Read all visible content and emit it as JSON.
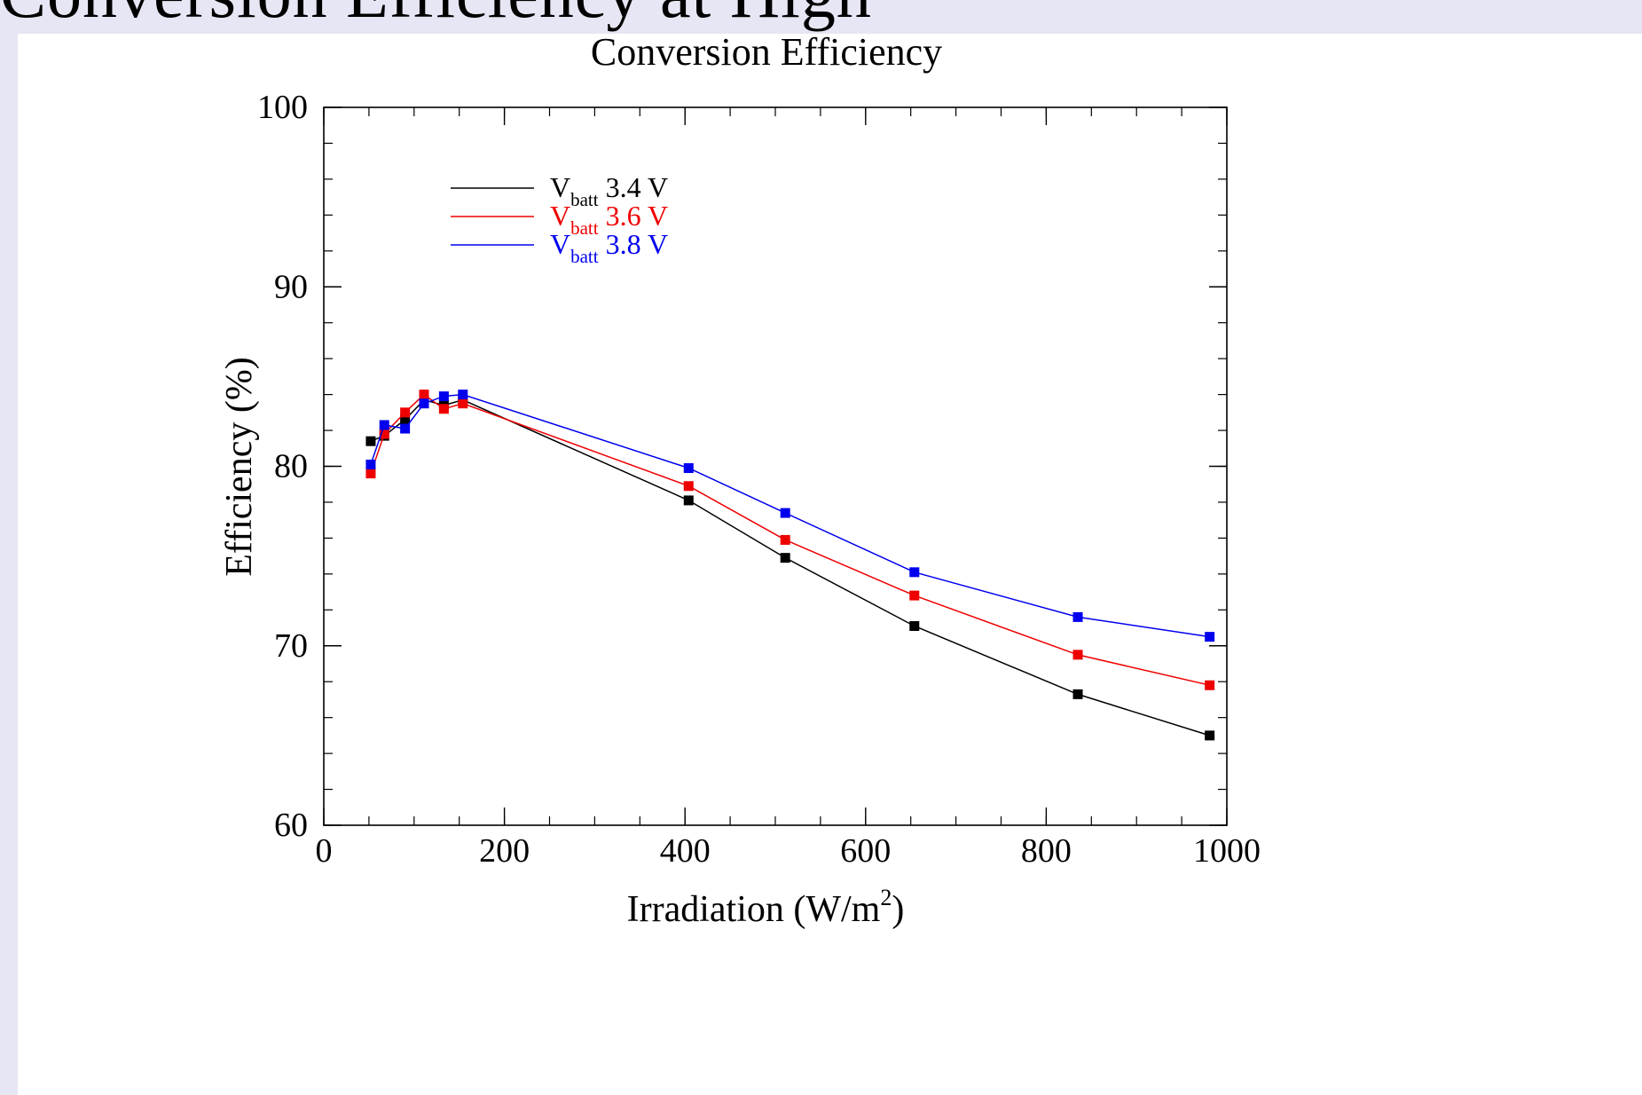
{
  "slide": {
    "title_fragment": "Conversion Efficiency at High"
  },
  "chart_data": {
    "type": "line",
    "title": "Conversion Efficiency",
    "xlabel": "Irradiation (W/m",
    "xlabel_superscript": "2",
    "xlabel_suffix": ")",
    "ylabel": "Efficiency (%)",
    "xlim": [
      0,
      1000
    ],
    "ylim": [
      60,
      100
    ],
    "x_ticks": [
      0,
      200,
      400,
      600,
      800,
      1000
    ],
    "y_ticks": [
      60,
      70,
      80,
      90,
      100
    ],
    "x_minor_step": 50,
    "y_minor_step": 2,
    "grid": false,
    "legend_position": "top-left",
    "marker": "square",
    "series": [
      {
        "name": "V",
        "name_subscript": "batt",
        "name_suffix": "3.4 V",
        "color": "#000000",
        "x": [
          52,
          67,
          90,
          111,
          133,
          154,
          404,
          511,
          654,
          835,
          981
        ],
        "y": [
          81.4,
          81.7,
          82.6,
          83.7,
          83.4,
          83.7,
          78.1,
          74.9,
          71.1,
          67.3,
          65.0
        ]
      },
      {
        "name": "V",
        "name_subscript": "batt",
        "name_suffix": "3.6 V",
        "color": "#ee0000",
        "x": [
          52,
          67,
          90,
          111,
          133,
          154,
          404,
          511,
          654,
          835,
          981
        ],
        "y": [
          79.6,
          81.8,
          83.0,
          84.0,
          83.2,
          83.5,
          78.9,
          75.9,
          72.8,
          69.5,
          67.8
        ]
      },
      {
        "name": "V",
        "name_subscript": "batt",
        "name_suffix": "3.8 V",
        "color": "#0000ee",
        "x": [
          52,
          67,
          90,
          111,
          133,
          154,
          404,
          511,
          654,
          835,
          981
        ],
        "y": [
          80.1,
          82.3,
          82.1,
          83.5,
          83.9,
          84.0,
          79.9,
          77.4,
          74.1,
          71.6,
          70.5
        ]
      }
    ]
  }
}
